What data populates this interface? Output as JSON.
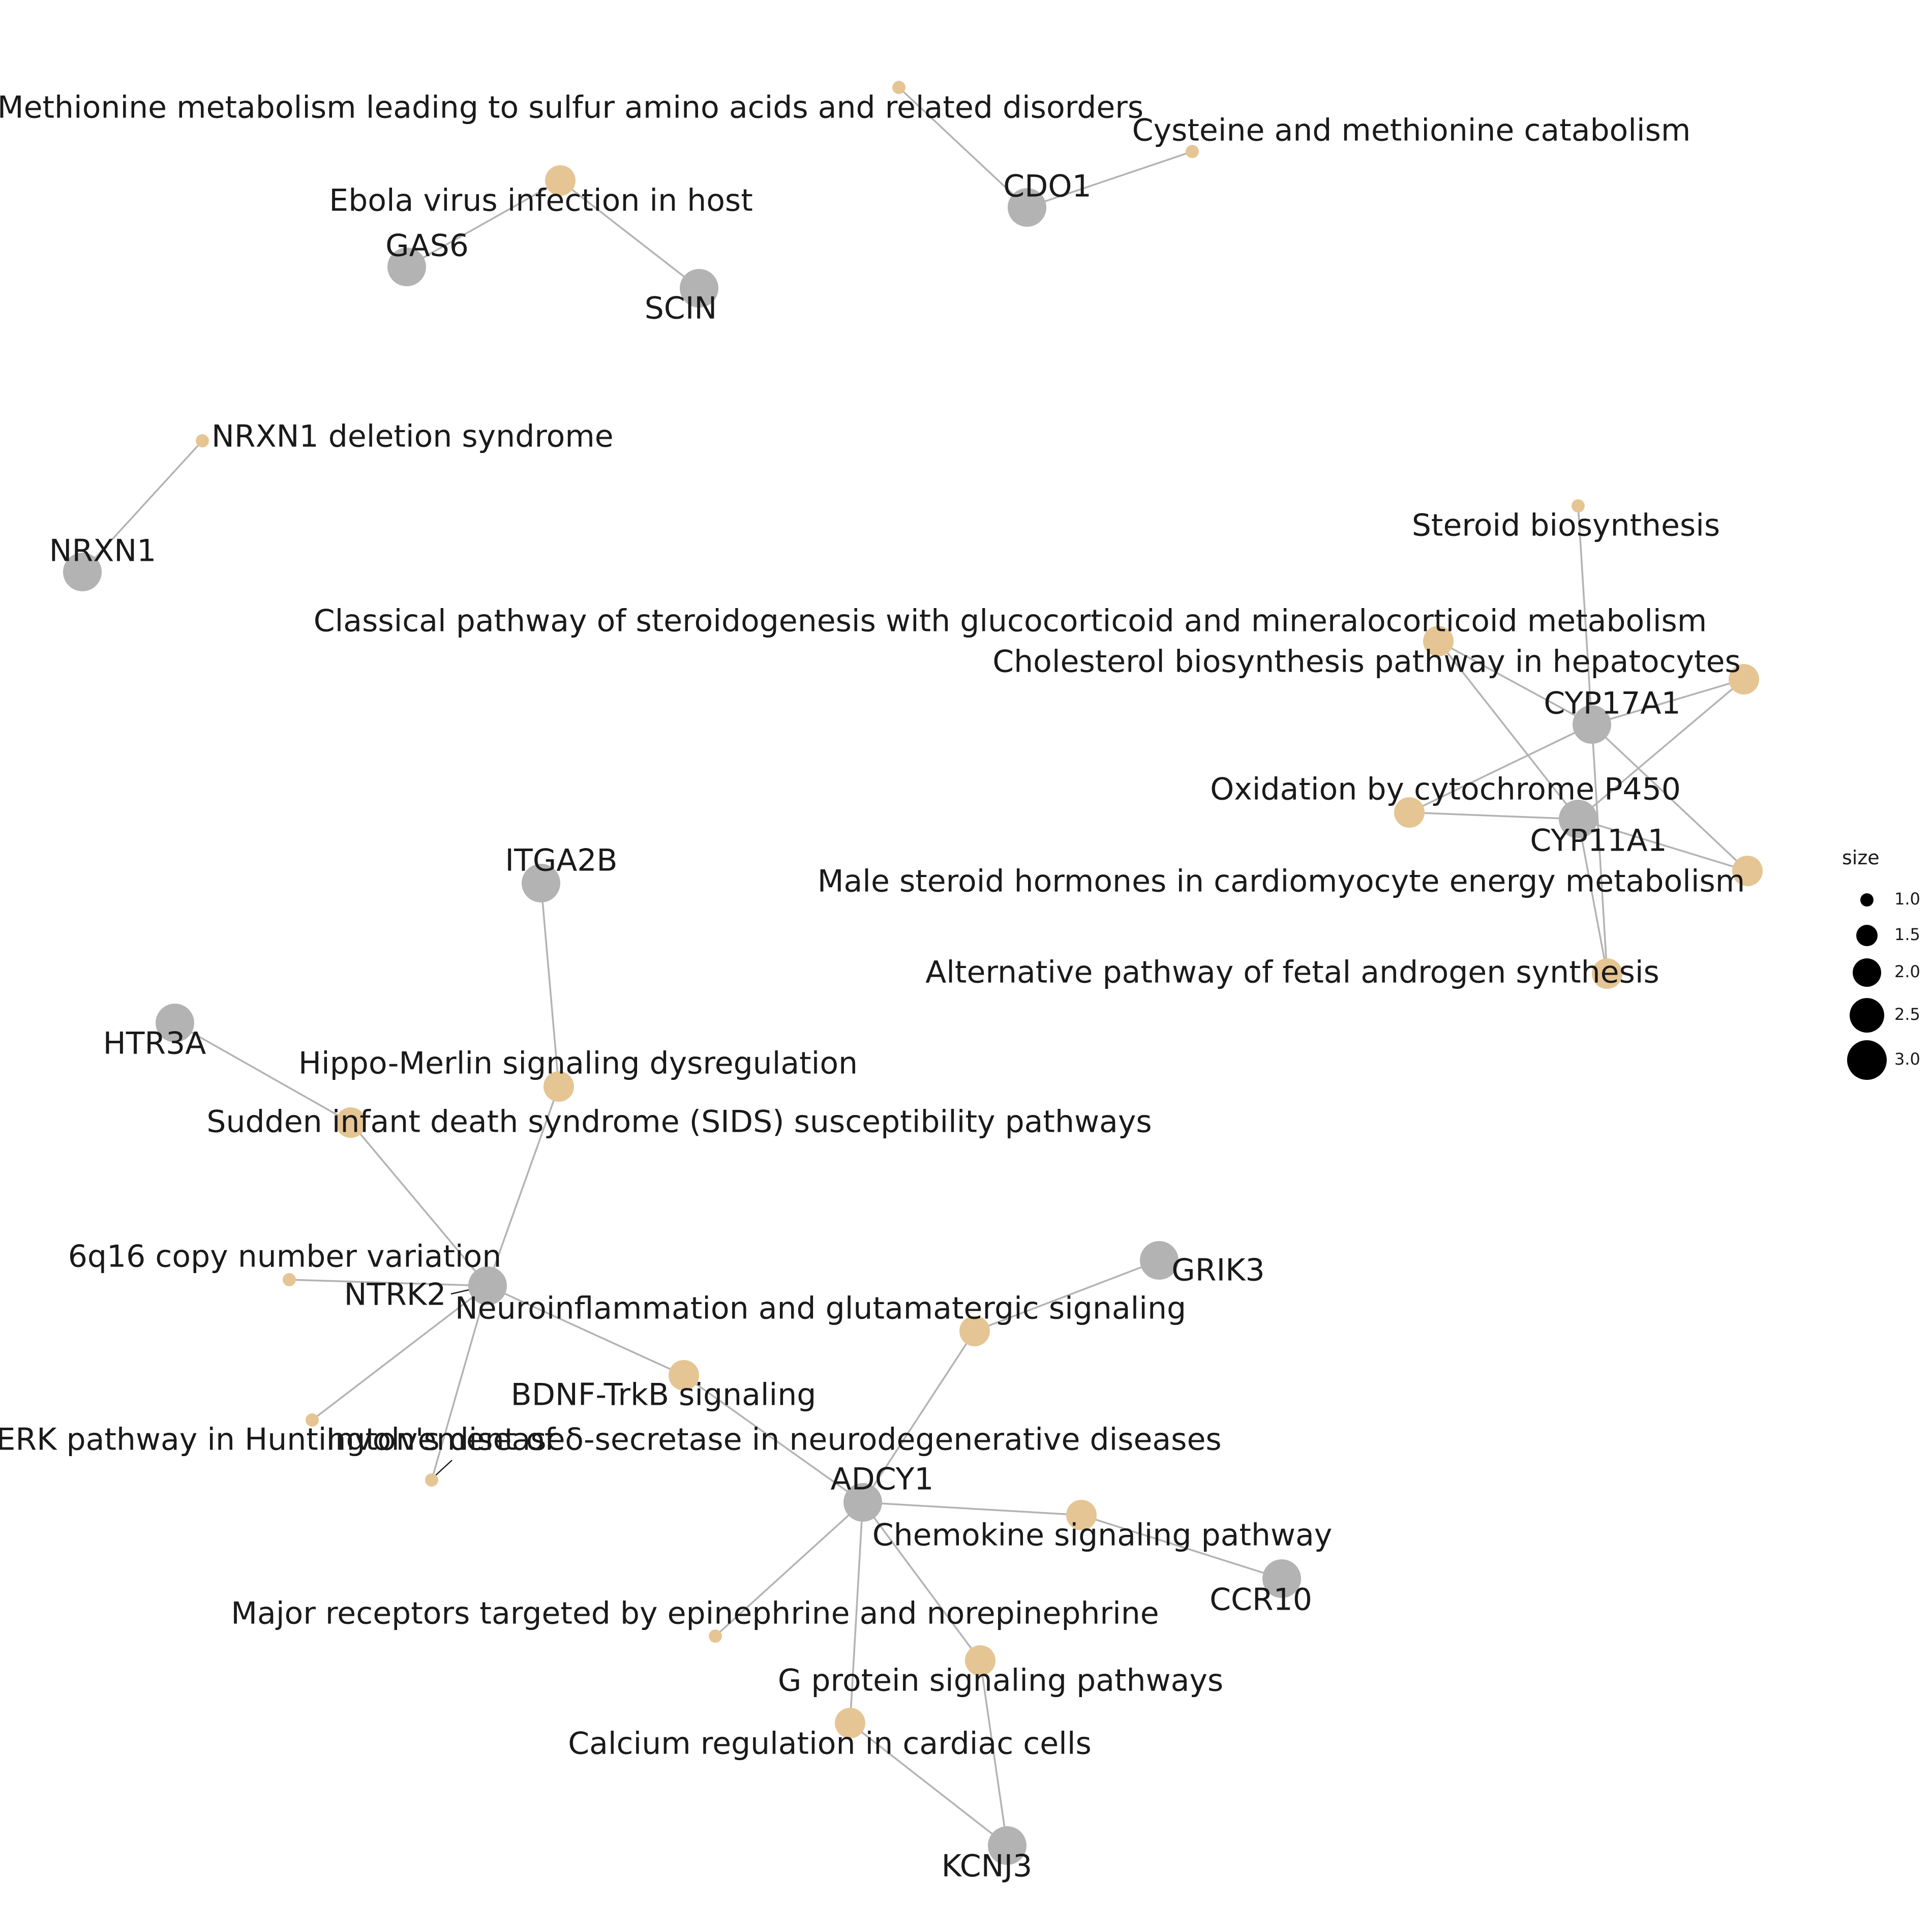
{
  "colors": {
    "gene_node": "#b3b3b3",
    "pathway_node": "#e6c594",
    "edge": "#b3b3b3",
    "label": "#1a1a1a",
    "background": "#ffffff"
  },
  "nodes": [
    {
      "id": "p_methionine",
      "type": "pathway",
      "size": 1,
      "label": "Methionine metabolism leading to sulfur amino acids and related disorders"
    },
    {
      "id": "p_cysteine",
      "type": "pathway",
      "size": 1,
      "label": "Cysteine and methionine catabolism"
    },
    {
      "id": "g_cdo1",
      "type": "gene",
      "label": "CDO1"
    },
    {
      "id": "p_ebola",
      "type": "pathway",
      "size": 2,
      "label": "Ebola virus infection in host"
    },
    {
      "id": "g_gas6",
      "type": "gene",
      "label": "GAS6"
    },
    {
      "id": "g_scin",
      "type": "gene",
      "label": "SCIN"
    },
    {
      "id": "p_nrxn1del",
      "type": "pathway",
      "size": 1,
      "label": "NRXN1 deletion syndrome"
    },
    {
      "id": "g_nrxn1",
      "type": "gene",
      "label": "NRXN1"
    },
    {
      "id": "p_steroidbio",
      "type": "pathway",
      "size": 1,
      "label": "Steroid biosynthesis"
    },
    {
      "id": "p_classical",
      "type": "pathway",
      "size": 2,
      "label": "Classical pathway of steroidogenesis with glucocorticoid and mineralocorticoid metabolism"
    },
    {
      "id": "p_cholesterol",
      "type": "pathway",
      "size": 2,
      "label": "Cholesterol biosynthesis pathway in hepatocytes"
    },
    {
      "id": "g_cyp17a1",
      "type": "gene",
      "label": "CYP17A1"
    },
    {
      "id": "p_oxidation",
      "type": "pathway",
      "size": 2,
      "label": "Oxidation by cytochrome P450"
    },
    {
      "id": "g_cyp11a1",
      "type": "gene",
      "label": "CYP11A1"
    },
    {
      "id": "p_male",
      "type": "pathway",
      "size": 2,
      "label": "Male steroid hormones in cardiomyocyte energy metabolism"
    },
    {
      "id": "p_fetal",
      "type": "pathway",
      "size": 2,
      "label": "Alternative pathway of fetal androgen synthesis"
    },
    {
      "id": "g_itga2b",
      "type": "gene",
      "label": "ITGA2B"
    },
    {
      "id": "g_htr3a",
      "type": "gene",
      "label": "HTR3A"
    },
    {
      "id": "p_hippo",
      "type": "pathway",
      "size": 2,
      "label": "Hippo-Merlin signaling dysregulation"
    },
    {
      "id": "p_sids",
      "type": "pathway",
      "size": 2,
      "label": "Sudden infant death syndrome (SIDS) susceptibility pathways"
    },
    {
      "id": "p_6q16",
      "type": "pathway",
      "size": 1,
      "label": "6q16 copy number variation"
    },
    {
      "id": "g_ntrk2",
      "type": "gene",
      "label": "NTRK2"
    },
    {
      "id": "g_grik3",
      "type": "gene",
      "label": "GRIK3"
    },
    {
      "id": "p_neuroinf",
      "type": "pathway",
      "size": 2,
      "label": "Neuroinflammation and glutamatergic signaling"
    },
    {
      "id": "p_bdnf",
      "type": "pathway",
      "size": 2,
      "label": "BDNF-TrkB signaling"
    },
    {
      "id": "p_erk",
      "type": "pathway",
      "size": 1,
      "label": "ERK pathway in Huntington's disease"
    },
    {
      "id": "p_delta",
      "type": "pathway",
      "size": 1,
      "label": "Involvement of δ-secretase in neurodegenerative diseases"
    },
    {
      "id": "g_adcy1",
      "type": "gene",
      "label": "ADCY1"
    },
    {
      "id": "p_chemokine",
      "type": "pathway",
      "size": 2,
      "label": "Chemokine signaling pathway"
    },
    {
      "id": "g_ccr10",
      "type": "gene",
      "label": "CCR10"
    },
    {
      "id": "p_major",
      "type": "pathway",
      "size": 1,
      "label": "Major receptors targeted by epinephrine and norepinephrine"
    },
    {
      "id": "p_gprotein",
      "type": "pathway",
      "size": 2,
      "label": "G protein signaling pathways"
    },
    {
      "id": "p_calcium",
      "type": "pathway",
      "size": 2,
      "label": "Calcium regulation in cardiac cells"
    },
    {
      "id": "g_kcnj3",
      "type": "gene",
      "label": "KCNJ3"
    }
  ],
  "edges": [
    [
      "g_cdo1",
      "p_methionine"
    ],
    [
      "g_cdo1",
      "p_cysteine"
    ],
    [
      "g_gas6",
      "p_ebola"
    ],
    [
      "g_scin",
      "p_ebola"
    ],
    [
      "g_nrxn1",
      "p_nrxn1del"
    ],
    [
      "g_cyp17a1",
      "p_steroidbio"
    ],
    [
      "g_cyp17a1",
      "p_classical"
    ],
    [
      "g_cyp17a1",
      "p_cholesterol"
    ],
    [
      "g_cyp17a1",
      "p_oxidation"
    ],
    [
      "g_cyp17a1",
      "p_male"
    ],
    [
      "g_cyp17a1",
      "p_fetal"
    ],
    [
      "g_cyp11a1",
      "p_classical"
    ],
    [
      "g_cyp11a1",
      "p_cholesterol"
    ],
    [
      "g_cyp11a1",
      "p_oxidation"
    ],
    [
      "g_cyp11a1",
      "p_male"
    ],
    [
      "g_cyp11a1",
      "p_fetal"
    ],
    [
      "g_itga2b",
      "p_hippo"
    ],
    [
      "g_ntrk2",
      "p_hippo"
    ],
    [
      "g_htr3a",
      "p_sids"
    ],
    [
      "g_ntrk2",
      "p_sids"
    ],
    [
      "g_ntrk2",
      "p_6q16"
    ],
    [
      "g_ntrk2",
      "p_erk"
    ],
    [
      "g_ntrk2",
      "p_delta"
    ],
    [
      "g_ntrk2",
      "p_bdnf"
    ],
    [
      "g_adcy1",
      "p_bdnf"
    ],
    [
      "g_adcy1",
      "p_neuroinf"
    ],
    [
      "g_grik3",
      "p_neuroinf"
    ],
    [
      "g_adcy1",
      "p_chemokine"
    ],
    [
      "g_ccr10",
      "p_chemokine"
    ],
    [
      "g_adcy1",
      "p_major"
    ],
    [
      "g_adcy1",
      "p_gprotein"
    ],
    [
      "g_adcy1",
      "p_calcium"
    ],
    [
      "g_kcnj3",
      "p_gprotein"
    ],
    [
      "g_kcnj3",
      "p_calcium"
    ]
  ],
  "legend": {
    "title": "size",
    "entries": [
      "1.0",
      "1.5",
      "2.0",
      "2.5",
      "3.0"
    ]
  }
}
